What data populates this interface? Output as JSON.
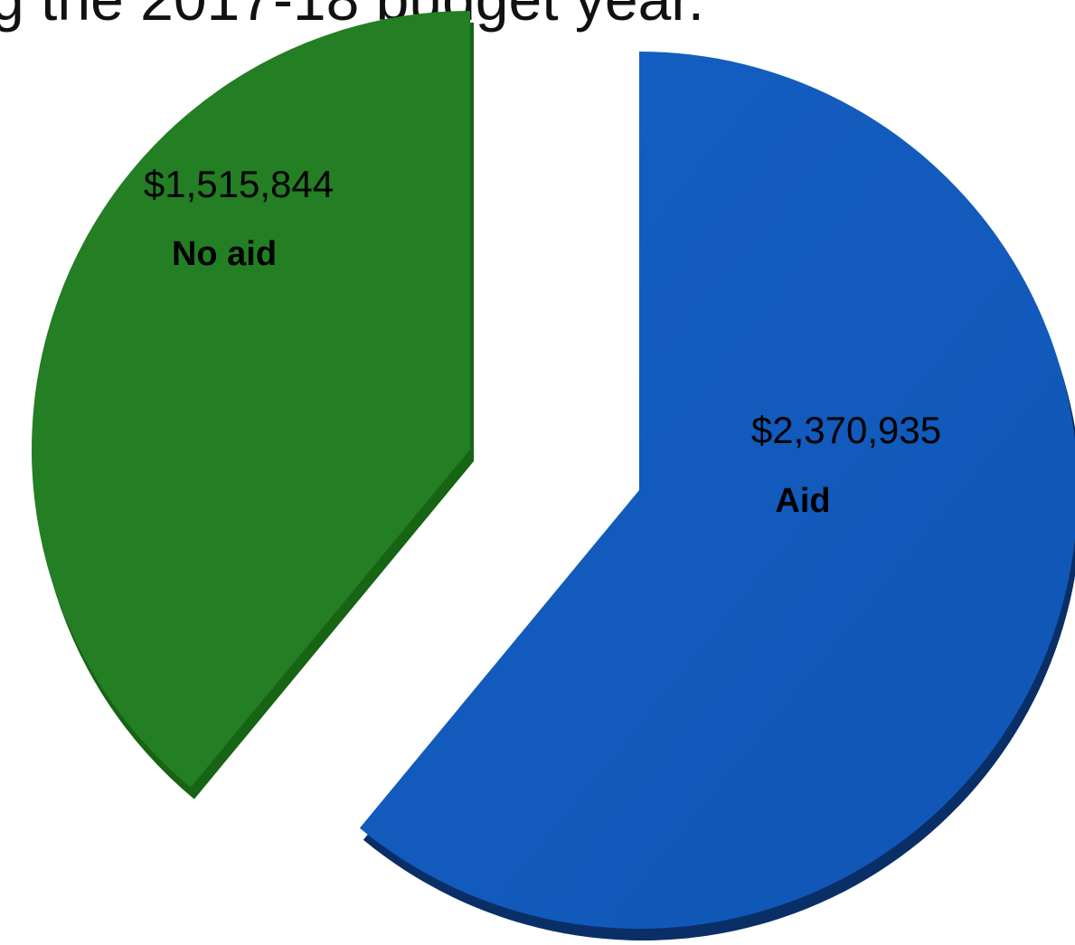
{
  "caption": "g the 2017-18 budget year.",
  "chart_data": {
    "type": "pie",
    "style": "3d-exploded",
    "title": "",
    "slices": [
      {
        "label": "No aid",
        "value": 1515844,
        "value_label": "$1,515,844",
        "color": "#237e24",
        "side_color": "#176414"
      },
      {
        "label": "Aid",
        "value": 2370935,
        "value_label": "$2,370,935",
        "color": "#1259be",
        "side_color": "#0a2f66"
      }
    ],
    "legend": "none"
  }
}
